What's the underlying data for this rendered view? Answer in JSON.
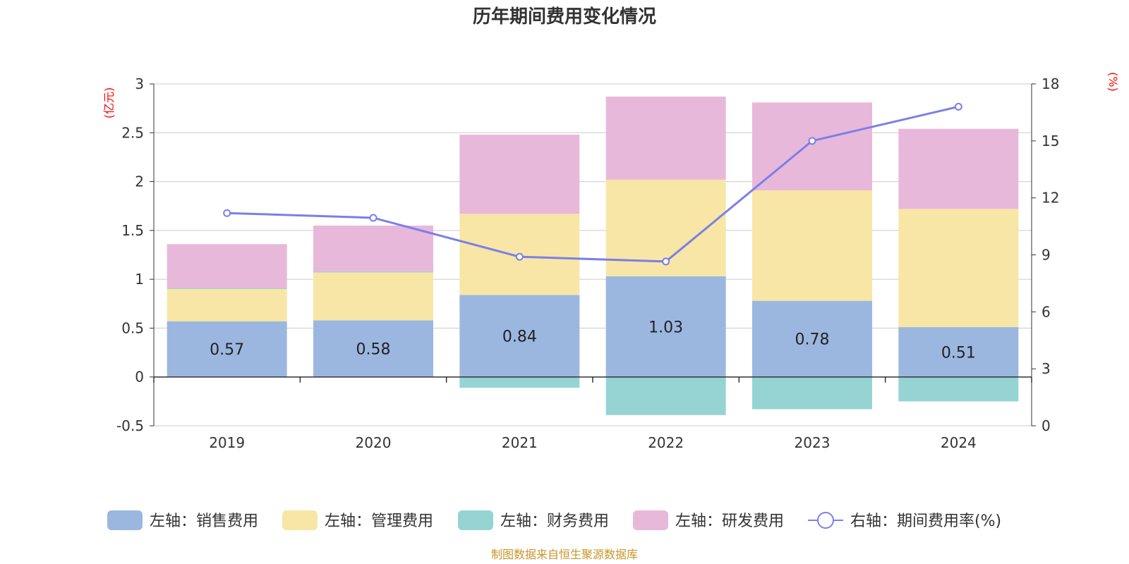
{
  "chart_data": {
    "type": "bar",
    "title": "历年期间费用变化情况",
    "categories": [
      "2019",
      "2020",
      "2021",
      "2022",
      "2023",
      "2024"
    ],
    "left_axis": {
      "unit": "(亿元)",
      "ylim": [
        -0.5,
        3
      ],
      "ticks": [
        "-0.5",
        "0",
        "0.5",
        "1",
        "1.5",
        "2",
        "2.5",
        "3"
      ]
    },
    "right_axis": {
      "unit": "(%)",
      "ylim": [
        0,
        18
      ],
      "ticks": [
        "0",
        "3",
        "6",
        "9",
        "12",
        "15",
        "18"
      ]
    },
    "series": [
      {
        "name": "左轴：销售费用",
        "axis": "left",
        "kind": "bar",
        "color": "#9bb7e0",
        "values": [
          0.57,
          0.58,
          0.84,
          1.03,
          0.78,
          0.51
        ],
        "labels": [
          "0.57",
          "0.58",
          "0.84",
          "1.03",
          "0.78",
          "0.51"
        ]
      },
      {
        "name": "左轴：管理费用",
        "axis": "left",
        "kind": "bar",
        "color": "#f8e6a6",
        "values": [
          0.33,
          0.49,
          0.83,
          0.99,
          1.13,
          1.21
        ]
      },
      {
        "name": "左轴：财务费用",
        "axis": "left",
        "kind": "bar",
        "color": "#96d4d4",
        "values": [
          0.01,
          0.01,
          -0.11,
          -0.39,
          -0.33,
          -0.25
        ]
      },
      {
        "name": "左轴：研发费用",
        "axis": "left",
        "kind": "bar",
        "color": "#e8b8da",
        "values": [
          0.45,
          0.47,
          0.81,
          0.85,
          0.9,
          0.82
        ]
      },
      {
        "name": "右轴：期间费用率(%)",
        "axis": "right",
        "kind": "line",
        "color": "#7b7fe8",
        "values": [
          11.2,
          10.95,
          8.9,
          8.65,
          15.0,
          16.8
        ]
      }
    ],
    "source": "制图数据来自恒生聚源数据库"
  }
}
